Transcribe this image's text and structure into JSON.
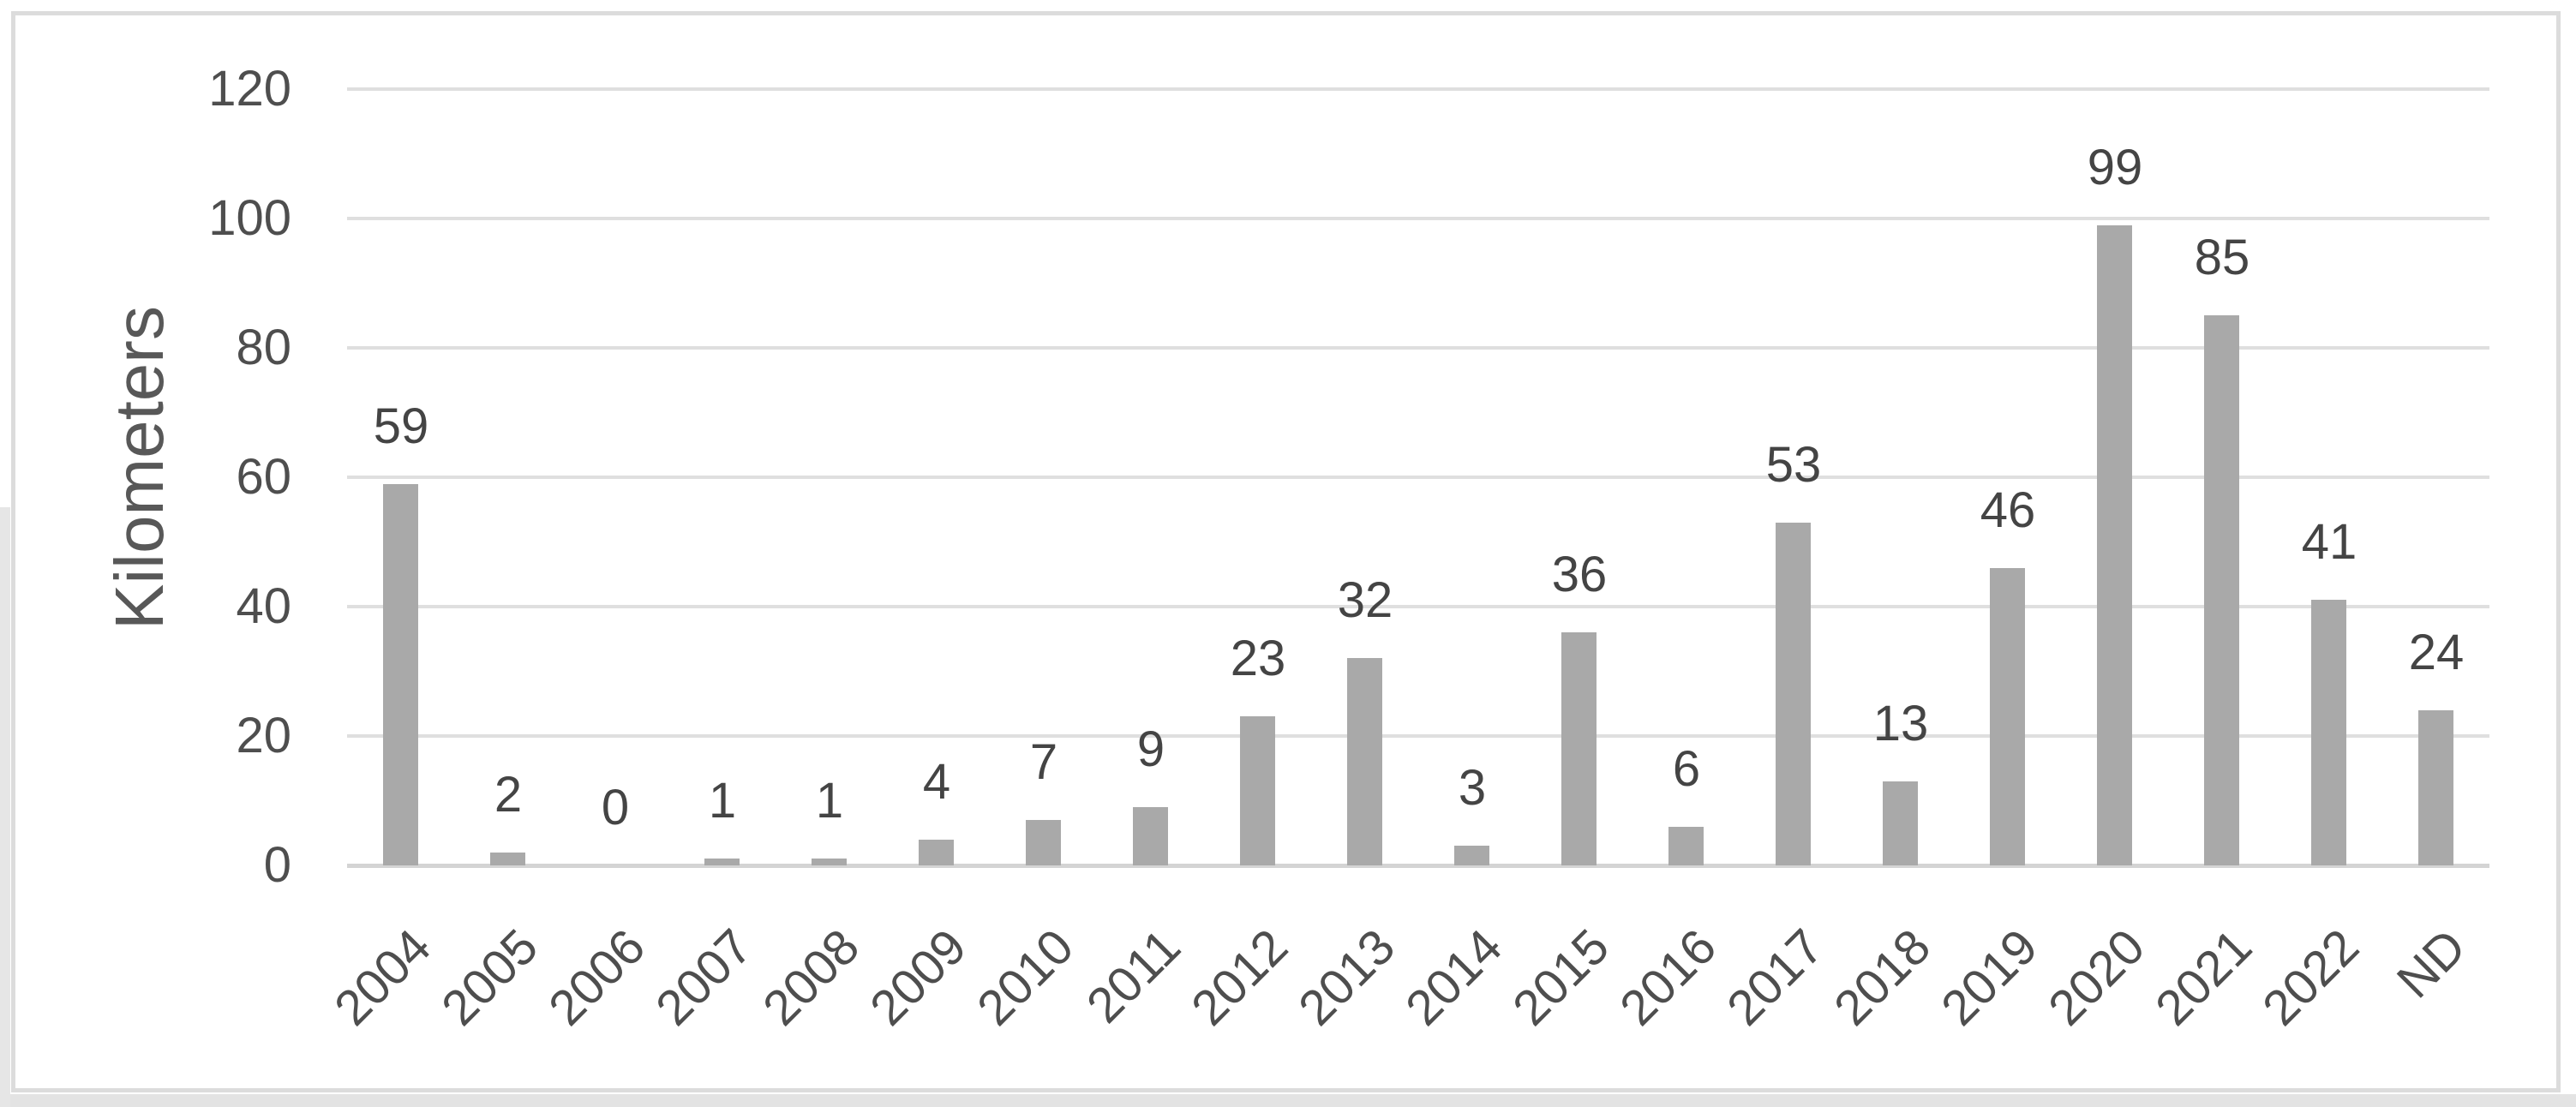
{
  "figure": {
    "background": "#ffffff",
    "frame_border_color": "#dcdcdc",
    "edge_shadow_color": "#e3e3e3"
  },
  "chart_data": {
    "type": "bar",
    "title": "",
    "ylabel": "Kilometers",
    "xlabel": "",
    "categories": [
      "2004",
      "2005",
      "2006",
      "2007",
      "2008",
      "2009",
      "2010",
      "2011",
      "2012",
      "2013",
      "2014",
      "2015",
      "2016",
      "2017",
      "2018",
      "2019",
      "2020",
      "2021",
      "2022",
      "ND"
    ],
    "values": [
      59,
      2,
      0,
      1,
      1,
      4,
      7,
      9,
      23,
      32,
      3,
      36,
      6,
      53,
      13,
      46,
      99,
      85,
      41,
      24
    ],
    "ylim": [
      0,
      120
    ],
    "yticks": [
      0,
      20,
      40,
      60,
      80,
      100,
      120
    ],
    "grid": "horizontal",
    "legend": "none",
    "data_labels": true,
    "bar_color": "#a9a9a9",
    "gridline_color": "#dfdfdf",
    "axis_line_color": "#d4d4d4",
    "text_color": "#4e4e4e"
  }
}
